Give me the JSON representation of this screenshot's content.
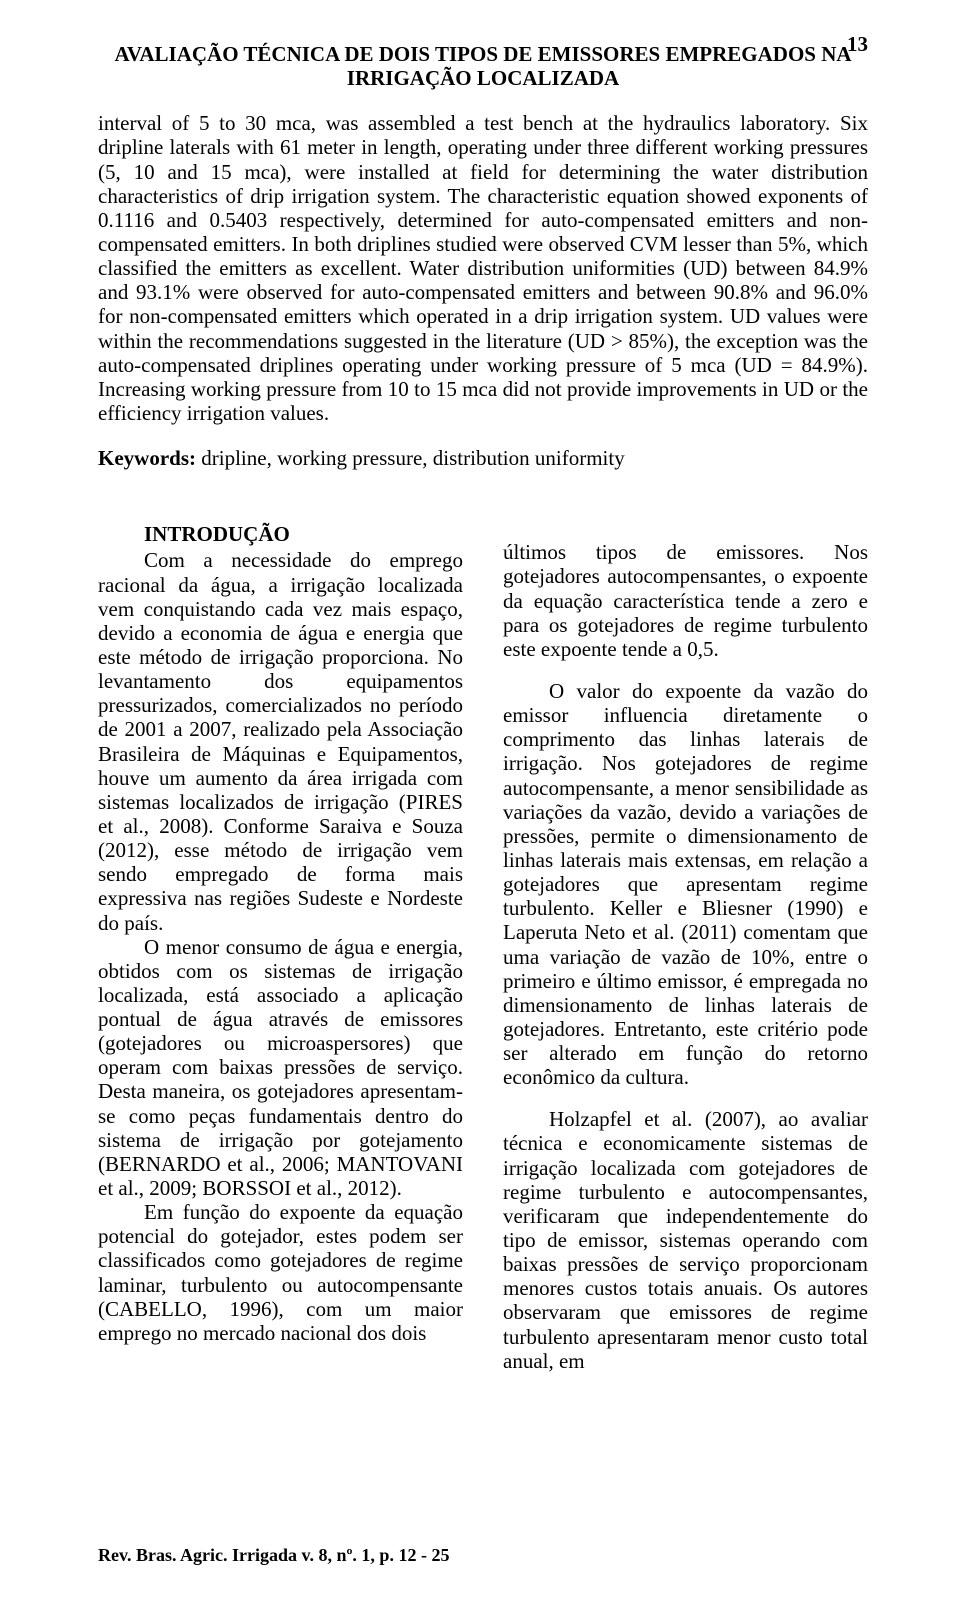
{
  "page_number": "13",
  "title_line1": "AVALIAÇÃO TÉCNICA DE DOIS TIPOS DE EMISSORES EMPREGADOS NA",
  "title_line2": "IRRIGAÇÃO LOCALIZADA",
  "abstract": "interval of 5 to 30 mca, was assembled a test bench at the hydraulics laboratory. Six dripline laterals with 61 meter in length, operating under three different working pressures (5, 10 and 15 mca), were installed at field for determining the water distribution characteristics of drip irrigation system. The characteristic equation showed exponents of 0.1116 and 0.5403 respectively, determined for auto-compensated emitters and non-compensated emitters. In both driplines studied were observed CVM lesser than 5%, which classified the emitters as excellent. Water distribution uniformities (UD) between 84.9% and 93.1% were observed for auto-compensated emitters and between 90.8% and 96.0% for non-compensated emitters which operated in a drip irrigation system. UD values were within the recommendations suggested in the literature (UD > 85%), the exception was the auto-compensated driplines operating under working pressure of 5 mca (UD = 84.9%). Increasing working pressure from 10 to 15 mca did not provide improvements in UD or the efficiency irrigation values.",
  "keywords_label": "Keywords:",
  "keywords_text": " dripline, working pressure, distribution uniformity",
  "section_heading": "INTRODUÇÃO",
  "left_col": {
    "p1": "Com a necessidade do emprego racional da água, a irrigação localizada vem conquistando cada vez mais espaço, devido a economia de água e energia que este método de irrigação proporciona. No levantamento dos equipamentos pressurizados, comercializados no período de 2001 a 2007, realizado pela Associação Brasileira de Máquinas e Equipamentos, houve um aumento da área irrigada com sistemas localizados de irrigação (PIRES et al., 2008). Conforme Saraiva e Souza (2012), esse método de irrigação vem sendo empregado de forma mais expressiva nas regiões Sudeste e Nordeste do país.",
    "p2": "O menor consumo de água e energia, obtidos com os sistemas de irrigação localizada, está associado a aplicação pontual de água através de emissores (gotejadores ou microaspersores) que operam com baixas pressões de serviço. Desta maneira, os gotejadores apresentam-se como peças fundamentais dentro do sistema de irrigação por gotejamento (BERNARDO et al., 2006; MANTOVANI et al., 2009; BORSSOI et al., 2012).",
    "p3": "Em função do expoente da equação potencial do gotejador, estes podem ser classificados como gotejadores de regime laminar, turbulento ou autocompensante (CABELLO, 1996), com um maior emprego no mercado nacional dos dois"
  },
  "right_col": {
    "p1": "últimos tipos de emissores. Nos gotejadores autocompensantes, o expoente da equação característica tende a zero e para os gotejadores de regime turbulento este expoente tende a 0,5.",
    "p2": "O valor do expoente da vazão do emissor influencia diretamente o comprimento das linhas laterais de irrigação. Nos gotejadores de regime autocompensante, a menor sensibilidade as variações da vazão, devido a variações de pressões, permite o dimensionamento de linhas laterais mais extensas, em relação a gotejadores que apresentam regime turbulento. Keller e Bliesner (1990) e Laperuta Neto et al. (2011) comentam que uma variação de vazão de 10%, entre o primeiro e último emissor, é empregada no dimensionamento de linhas laterais de gotejadores. Entretanto, este critério pode ser alterado em função do retorno econômico da cultura.",
    "p3": "Holzapfel et al. (2007), ao avaliar técnica e economicamente sistemas de irrigação localizada com gotejadores de regime turbulento e autocompensantes, verificaram que independentemente do tipo de emissor, sistemas operando com baixas pressões de serviço proporcionam menores custos totais anuais. Os autores observaram que emissores de regime turbulento apresentaram menor custo total anual, em"
  },
  "footer": "Rev. Bras. Agric. Irrigada v. 8, nº. 1, p. 12 - 25"
}
